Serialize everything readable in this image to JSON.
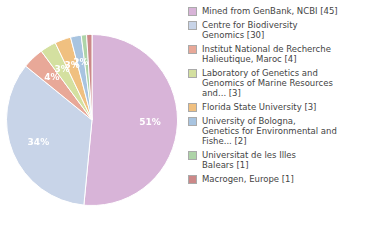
{
  "chart_data": {
    "type": "pie",
    "categories": [
      "Mined from GenBank, NCBI [45]",
      "Centre for Biodiversity\nGenomics [30]",
      "Institut National de Recherche\nHalieutique, Maroc [4]",
      "Laboratory of Genetics and\nGenomics of Marine Resources\nand... [3]",
      "Florida State University [3]",
      "University of Bologna,\nGenetics for Environmental and\nFishe... [2]",
      "Universitat de les Illes\nBalears [1]",
      "Macrogen, Europe [1]"
    ],
    "values": [
      51,
      34,
      4,
      3,
      3,
      2,
      1,
      1
    ],
    "value_labels": [
      "51%",
      "34%",
      "4%",
      "3%",
      "3%",
      "2%",
      null,
      null
    ],
    "colors": [
      "#d8b4d8",
      "#c8d4e8",
      "#e8a898",
      "#d4e0a0",
      "#f0c080",
      "#a8c4e0",
      "#aed4a8",
      "#cc8888"
    ],
    "data_labels": true,
    "legend": "right"
  }
}
